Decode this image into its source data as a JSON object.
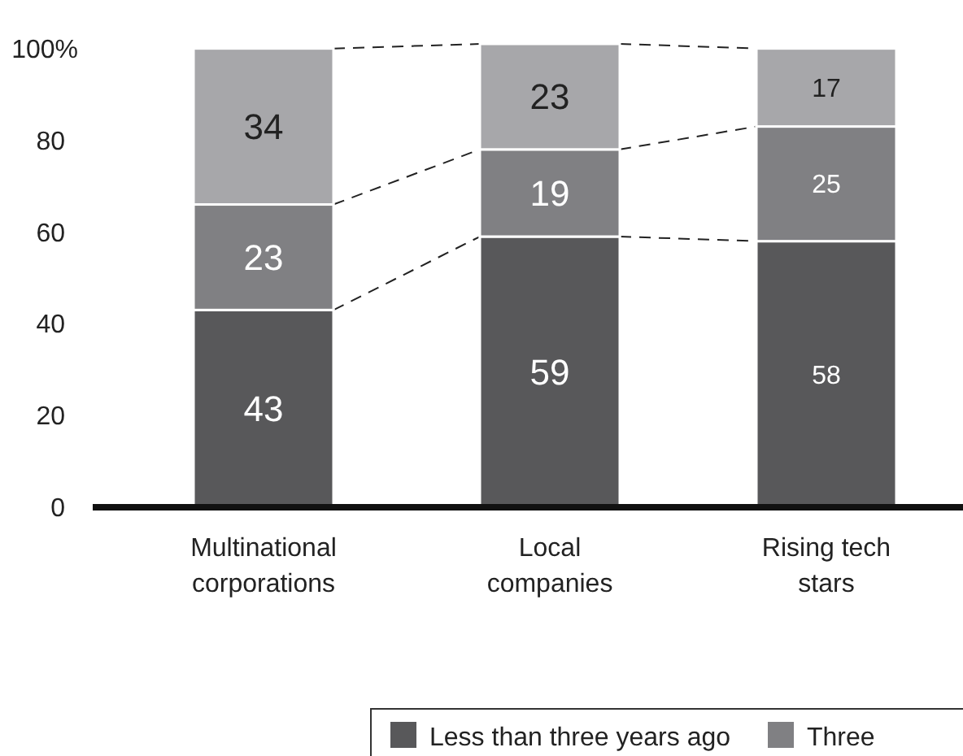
{
  "chart_data": {
    "type": "bar",
    "stacked": true,
    "categories": [
      "Multinational\ncorporations",
      "Local\ncompanies",
      "Rising tech\nstars"
    ],
    "series": [
      {
        "name": "Less than three years ago",
        "color": "#58585a",
        "values": [
          43,
          59,
          58
        ]
      },
      {
        "name": "Three",
        "color": "#808083",
        "values": [
          23,
          19,
          25
        ]
      },
      {
        "color": "#a7a7aa",
        "values": [
          34,
          23,
          17
        ]
      }
    ],
    "ylim": [
      0,
      101
    ],
    "yticks": [
      0,
      20,
      40,
      60,
      80,
      {
        "value": 100,
        "label": "100%"
      }
    ],
    "data_labels": true,
    "legend": "bottom"
  }
}
